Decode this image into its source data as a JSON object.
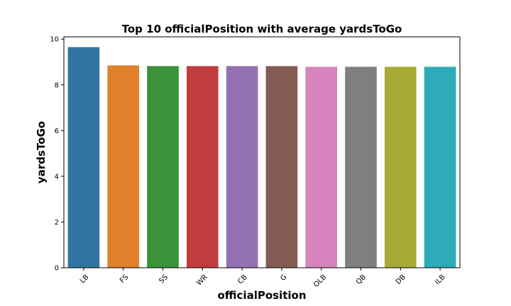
{
  "chart_data": {
    "type": "bar",
    "title": "Top 10 officialPosition with average yardsToGo",
    "xlabel": "officialPosition",
    "ylabel": "yardsToGo",
    "categories": [
      "LB",
      "FS",
      "SS",
      "WR",
      "CB",
      "G",
      "OLB",
      "QB",
      "DB",
      "ILB"
    ],
    "values": [
      9.65,
      8.85,
      8.82,
      8.82,
      8.82,
      8.82,
      8.79,
      8.79,
      8.79,
      8.79
    ],
    "colors": [
      "#3274a1",
      "#e1812c",
      "#3a923a",
      "#c03d3e",
      "#9372b2",
      "#845b53",
      "#d684bd",
      "#7f7f7f",
      "#a9aa35",
      "#2eabb8"
    ],
    "ylim": [
      0,
      10.1
    ],
    "yticks": [
      0,
      2,
      4,
      6,
      8,
      10
    ],
    "grid": false,
    "legend": "none"
  }
}
